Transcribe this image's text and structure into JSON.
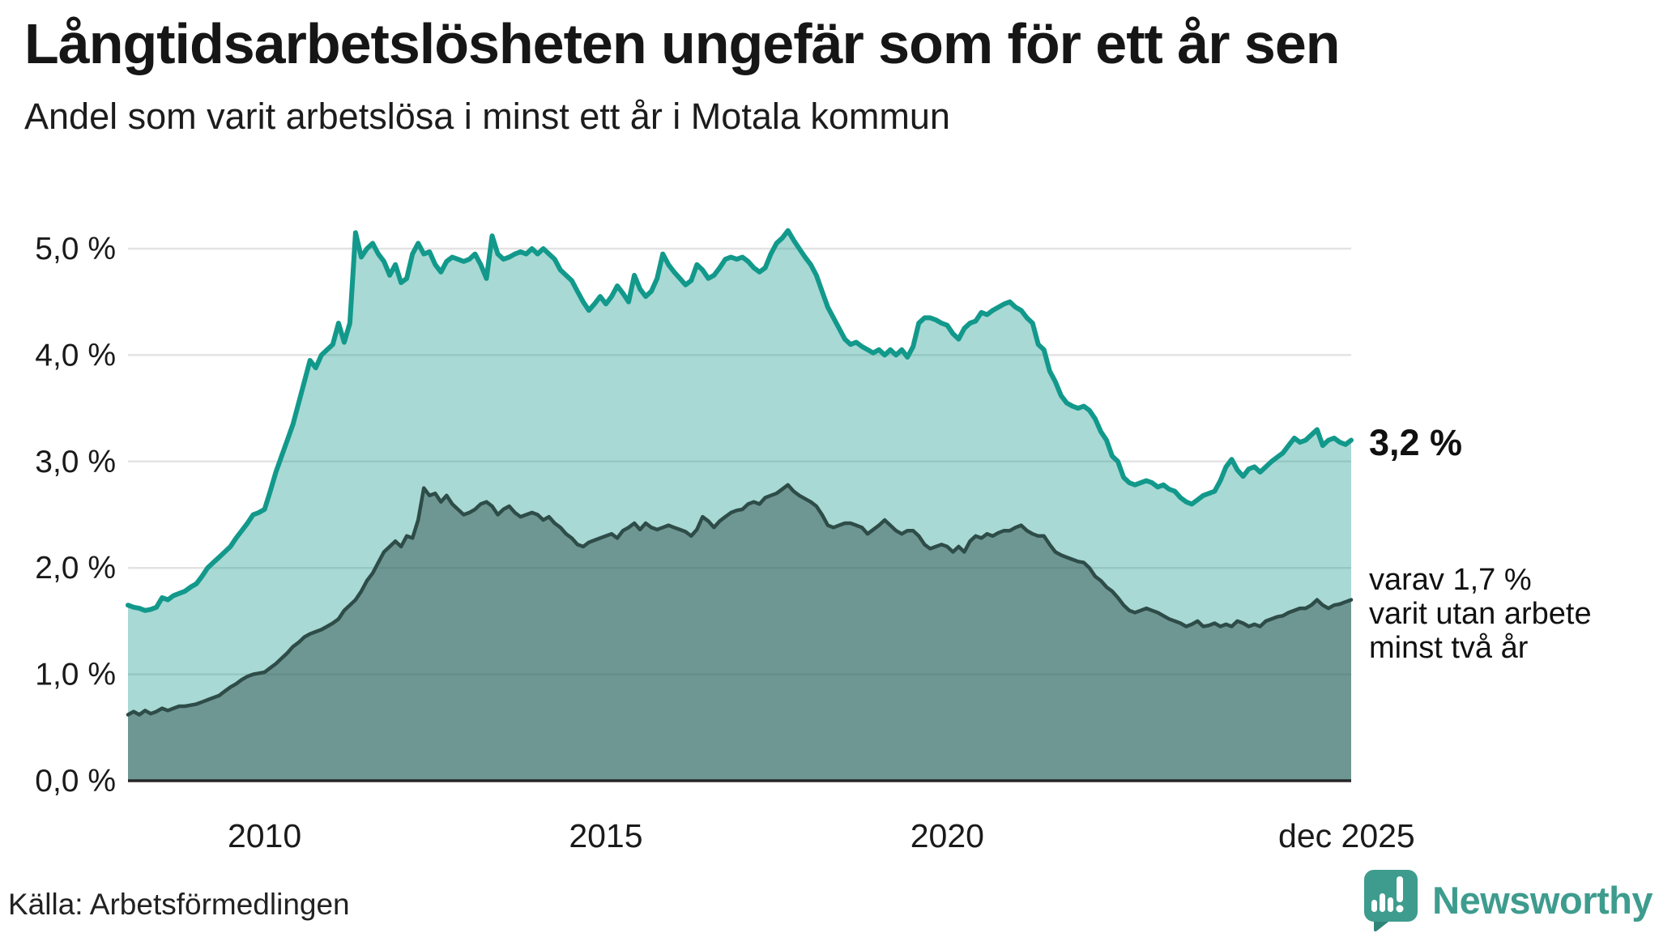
{
  "header": {
    "title": "Långtidsarbetslösheten ungefär som för ett år sen",
    "subtitle": "Andel som varit arbetslösa i minst ett år i Motala kommun"
  },
  "chart_data": {
    "type": "area",
    "unit": "%",
    "title": "Långtidsarbetslösheten ungefär som för ett år sen",
    "subtitle": "Andel som varit arbetslösa i minst ett år i Motala kommun",
    "x_domain": [
      2008.0,
      2025.9167
    ],
    "x_frequency": "monthly",
    "ylim": [
      0,
      5.3
    ],
    "grid": true,
    "x_ticks": [
      {
        "label": "2010",
        "t": 2010
      },
      {
        "label": "2015",
        "t": 2015
      },
      {
        "label": "2020",
        "t": 2020
      },
      {
        "label": "dec 2025",
        "t": 2025.85
      }
    ],
    "y_ticks": [
      {
        "label": "0,0 %",
        "v": 0
      },
      {
        "label": "1,0 %",
        "v": 1
      },
      {
        "label": "2,0 %",
        "v": 2
      },
      {
        "label": "3,0 %",
        "v": 3
      },
      {
        "label": "4,0 %",
        "v": 4
      },
      {
        "label": "5,0 %",
        "v": 5
      }
    ],
    "series": [
      {
        "name": "Arbetslösa minst ett år",
        "color": "#12998B",
        "fill": "#12998B",
        "fill_opacity": 0.37,
        "line_width": 6,
        "values": [
          1.65,
          1.63,
          1.62,
          1.6,
          1.61,
          1.63,
          1.72,
          1.7,
          1.74,
          1.76,
          1.78,
          1.82,
          1.85,
          1.92,
          2.0,
          2.05,
          2.1,
          2.15,
          2.2,
          2.28,
          2.35,
          2.42,
          2.5,
          2.52,
          2.55,
          2.72,
          2.9,
          3.05,
          3.2,
          3.35,
          3.55,
          3.75,
          3.95,
          3.88,
          4.0,
          4.05,
          4.1,
          4.3,
          4.12,
          4.3,
          5.15,
          4.92,
          5.0,
          5.05,
          4.95,
          4.88,
          4.75,
          4.85,
          4.68,
          4.72,
          4.95,
          5.05,
          4.95,
          4.97,
          4.85,
          4.78,
          4.88,
          4.92,
          4.9,
          4.88,
          4.9,
          4.95,
          4.85,
          4.72,
          5.12,
          4.95,
          4.9,
          4.92,
          4.95,
          4.97,
          4.95,
          5.0,
          4.95,
          5.0,
          4.95,
          4.9,
          4.8,
          4.75,
          4.7,
          4.6,
          4.5,
          4.42,
          4.48,
          4.55,
          4.48,
          4.55,
          4.65,
          4.58,
          4.5,
          4.75,
          4.62,
          4.55,
          4.6,
          4.72,
          4.95,
          4.85,
          4.78,
          4.72,
          4.66,
          4.7,
          4.85,
          4.8,
          4.72,
          4.75,
          4.82,
          4.9,
          4.92,
          4.9,
          4.92,
          4.88,
          4.82,
          4.78,
          4.82,
          4.95,
          5.05,
          5.1,
          5.17,
          5.08,
          5.0,
          4.92,
          4.85,
          4.75,
          4.6,
          4.45,
          4.35,
          4.25,
          4.15,
          4.1,
          4.12,
          4.08,
          4.05,
          4.02,
          4.05,
          4.0,
          4.05,
          4.0,
          4.05,
          3.98,
          4.08,
          4.3,
          4.35,
          4.35,
          4.33,
          4.3,
          4.28,
          4.2,
          4.15,
          4.25,
          4.3,
          4.32,
          4.4,
          4.38,
          4.42,
          4.45,
          4.48,
          4.5,
          4.45,
          4.42,
          4.35,
          4.3,
          4.1,
          4.05,
          3.85,
          3.75,
          3.62,
          3.55,
          3.52,
          3.5,
          3.52,
          3.48,
          3.4,
          3.28,
          3.2,
          3.05,
          3.0,
          2.85,
          2.8,
          2.78,
          2.8,
          2.82,
          2.8,
          2.76,
          2.78,
          2.74,
          2.72,
          2.66,
          2.62,
          2.6,
          2.64,
          2.68,
          2.7,
          2.72,
          2.82,
          2.95,
          3.02,
          2.92,
          2.86,
          2.93,
          2.95,
          2.9,
          2.95,
          3.0,
          3.04,
          3.08,
          3.15,
          3.22,
          3.18,
          3.2,
          3.25,
          3.3,
          3.15,
          3.2,
          3.22,
          3.18,
          3.16,
          3.2
        ]
      },
      {
        "name": "Arbetslösa minst två år",
        "color": "#2E4C48",
        "fill": "#2F4F4B",
        "fill_opacity": 0.475,
        "line_width": 4.5,
        "values": [
          0.62,
          0.65,
          0.62,
          0.66,
          0.63,
          0.65,
          0.68,
          0.66,
          0.68,
          0.7,
          0.7,
          0.71,
          0.72,
          0.74,
          0.76,
          0.78,
          0.8,
          0.84,
          0.88,
          0.91,
          0.95,
          0.98,
          1.0,
          1.01,
          1.02,
          1.06,
          1.1,
          1.15,
          1.2,
          1.26,
          1.3,
          1.35,
          1.38,
          1.4,
          1.42,
          1.45,
          1.48,
          1.52,
          1.6,
          1.65,
          1.7,
          1.78,
          1.88,
          1.95,
          2.05,
          2.15,
          2.2,
          2.25,
          2.2,
          2.3,
          2.28,
          2.45,
          2.75,
          2.68,
          2.7,
          2.62,
          2.68,
          2.6,
          2.55,
          2.5,
          2.52,
          2.55,
          2.6,
          2.62,
          2.58,
          2.5,
          2.55,
          2.58,
          2.52,
          2.48,
          2.5,
          2.52,
          2.5,
          2.45,
          2.48,
          2.42,
          2.38,
          2.32,
          2.28,
          2.22,
          2.2,
          2.24,
          2.26,
          2.28,
          2.3,
          2.32,
          2.28,
          2.35,
          2.38,
          2.42,
          2.36,
          2.42,
          2.38,
          2.36,
          2.38,
          2.4,
          2.38,
          2.36,
          2.34,
          2.3,
          2.36,
          2.48,
          2.44,
          2.38,
          2.44,
          2.48,
          2.52,
          2.54,
          2.55,
          2.6,
          2.62,
          2.6,
          2.66,
          2.68,
          2.7,
          2.74,
          2.78,
          2.72,
          2.68,
          2.65,
          2.62,
          2.58,
          2.5,
          2.4,
          2.38,
          2.4,
          2.42,
          2.42,
          2.4,
          2.38,
          2.32,
          2.36,
          2.4,
          2.45,
          2.4,
          2.35,
          2.32,
          2.35,
          2.35,
          2.3,
          2.22,
          2.18,
          2.2,
          2.22,
          2.2,
          2.15,
          2.2,
          2.15,
          2.25,
          2.3,
          2.28,
          2.32,
          2.3,
          2.33,
          2.35,
          2.35,
          2.38,
          2.4,
          2.35,
          2.32,
          2.3,
          2.3,
          2.22,
          2.15,
          2.12,
          2.1,
          2.08,
          2.06,
          2.05,
          2.0,
          1.92,
          1.88,
          1.82,
          1.78,
          1.72,
          1.65,
          1.6,
          1.58,
          1.6,
          1.62,
          1.6,
          1.58,
          1.55,
          1.52,
          1.5,
          1.48,
          1.45,
          1.47,
          1.5,
          1.45,
          1.46,
          1.48,
          1.45,
          1.47,
          1.45,
          1.5,
          1.48,
          1.45,
          1.47,
          1.45,
          1.5,
          1.52,
          1.54,
          1.55,
          1.58,
          1.6,
          1.62,
          1.62,
          1.65,
          1.7,
          1.65,
          1.62,
          1.65,
          1.66,
          1.68,
          1.7
        ]
      }
    ],
    "annotations": {
      "latest_label": "3,2 %",
      "latest_value": 3.2,
      "sub_lines": [
        "varav 1,7 %",
        "varit utan arbete",
        "minst två år"
      ],
      "sub_value": 1.7
    },
    "legend_position": "right-annotations"
  },
  "colors": {
    "accent_teal": "#12998B",
    "dark_slate": "#2E4C48",
    "gridline": "#E3E3E3",
    "baseline": "#262626",
    "brand_teal": "#3E9C8E",
    "text": "#1a1a1a"
  },
  "footer": {
    "source": "Källa: Arbetsförmedlingen",
    "brand": "Newsworthy"
  }
}
